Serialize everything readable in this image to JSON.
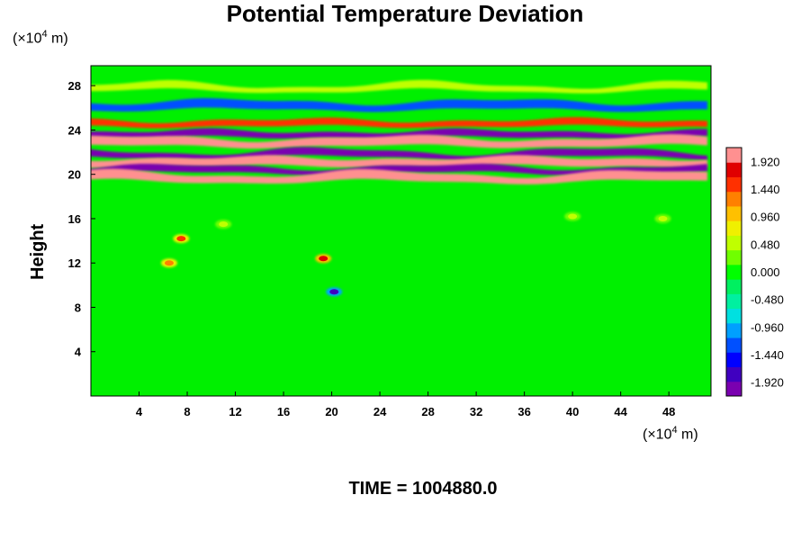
{
  "chart_data": {
    "type": "heatmap",
    "title": "Potential Temperature Deviation",
    "ylabel": "Height",
    "xlabel": "",
    "x_unit": "(×10",
    "unit_exp": "4",
    "unit_m": " m)",
    "y_unit": "(×10",
    "xlim": [
      0,
      51.5
    ],
    "ylim": [
      0,
      29.8
    ],
    "xticks": [
      4,
      8,
      12,
      16,
      20,
      24,
      28,
      32,
      36,
      40,
      44,
      48
    ],
    "yticks": [
      4,
      8,
      12,
      16,
      20,
      24,
      28
    ],
    "colorbar": {
      "range": [
        -2.16,
        2.16
      ],
      "tick_values": [
        1.92,
        1.44,
        0.96,
        0.48,
        0.0,
        -0.48,
        -0.96,
        -1.44,
        -1.92
      ],
      "tick_labels": [
        "1.920",
        "1.440",
        "0.960",
        "0.480",
        "0.000",
        "-0.480",
        "-0.960",
        "-1.440",
        "-1.920"
      ],
      "colors": [
        "#7a00b0",
        "#4000c0",
        "#0000ff",
        "#0050ff",
        "#00a0ff",
        "#00e0e0",
        "#00f0a0",
        "#00f060",
        "#00ff00",
        "#70ff00",
        "#c0ff00",
        "#f0f000",
        "#ffc000",
        "#ff8000",
        "#ff3000",
        "#e00000",
        "#ff9090"
      ]
    },
    "bands": [
      {
        "y": 23.6,
        "value": -2.1
      },
      {
        "y": 22.9,
        "value": 2.1
      },
      {
        "y": 21.8,
        "value": -2.1
      },
      {
        "y": 21.1,
        "value": 2.1
      },
      {
        "y": 20.4,
        "value": -2.1
      },
      {
        "y": 19.7,
        "value": 2.1
      },
      {
        "y": 24.6,
        "value": 1.6
      },
      {
        "y": 26.2,
        "value": -1.2
      },
      {
        "y": 27.8,
        "value": 0.5
      }
    ],
    "features": [
      {
        "x": 7.5,
        "y": 14.2,
        "value": 1.6
      },
      {
        "x": 6.5,
        "y": 12.0,
        "value": 1.2
      },
      {
        "x": 19.3,
        "y": 12.4,
        "value": 1.8
      },
      {
        "x": 20.2,
        "y": 9.4,
        "value": -1.9
      },
      {
        "x": 11.0,
        "y": 15.5,
        "value": 0.6
      },
      {
        "x": 40.0,
        "y": 16.2,
        "value": 0.5
      },
      {
        "x": 47.5,
        "y": 16.0,
        "value": 0.5
      }
    ]
  },
  "footer": {
    "time_label": "TIME = 1004880.0"
  }
}
